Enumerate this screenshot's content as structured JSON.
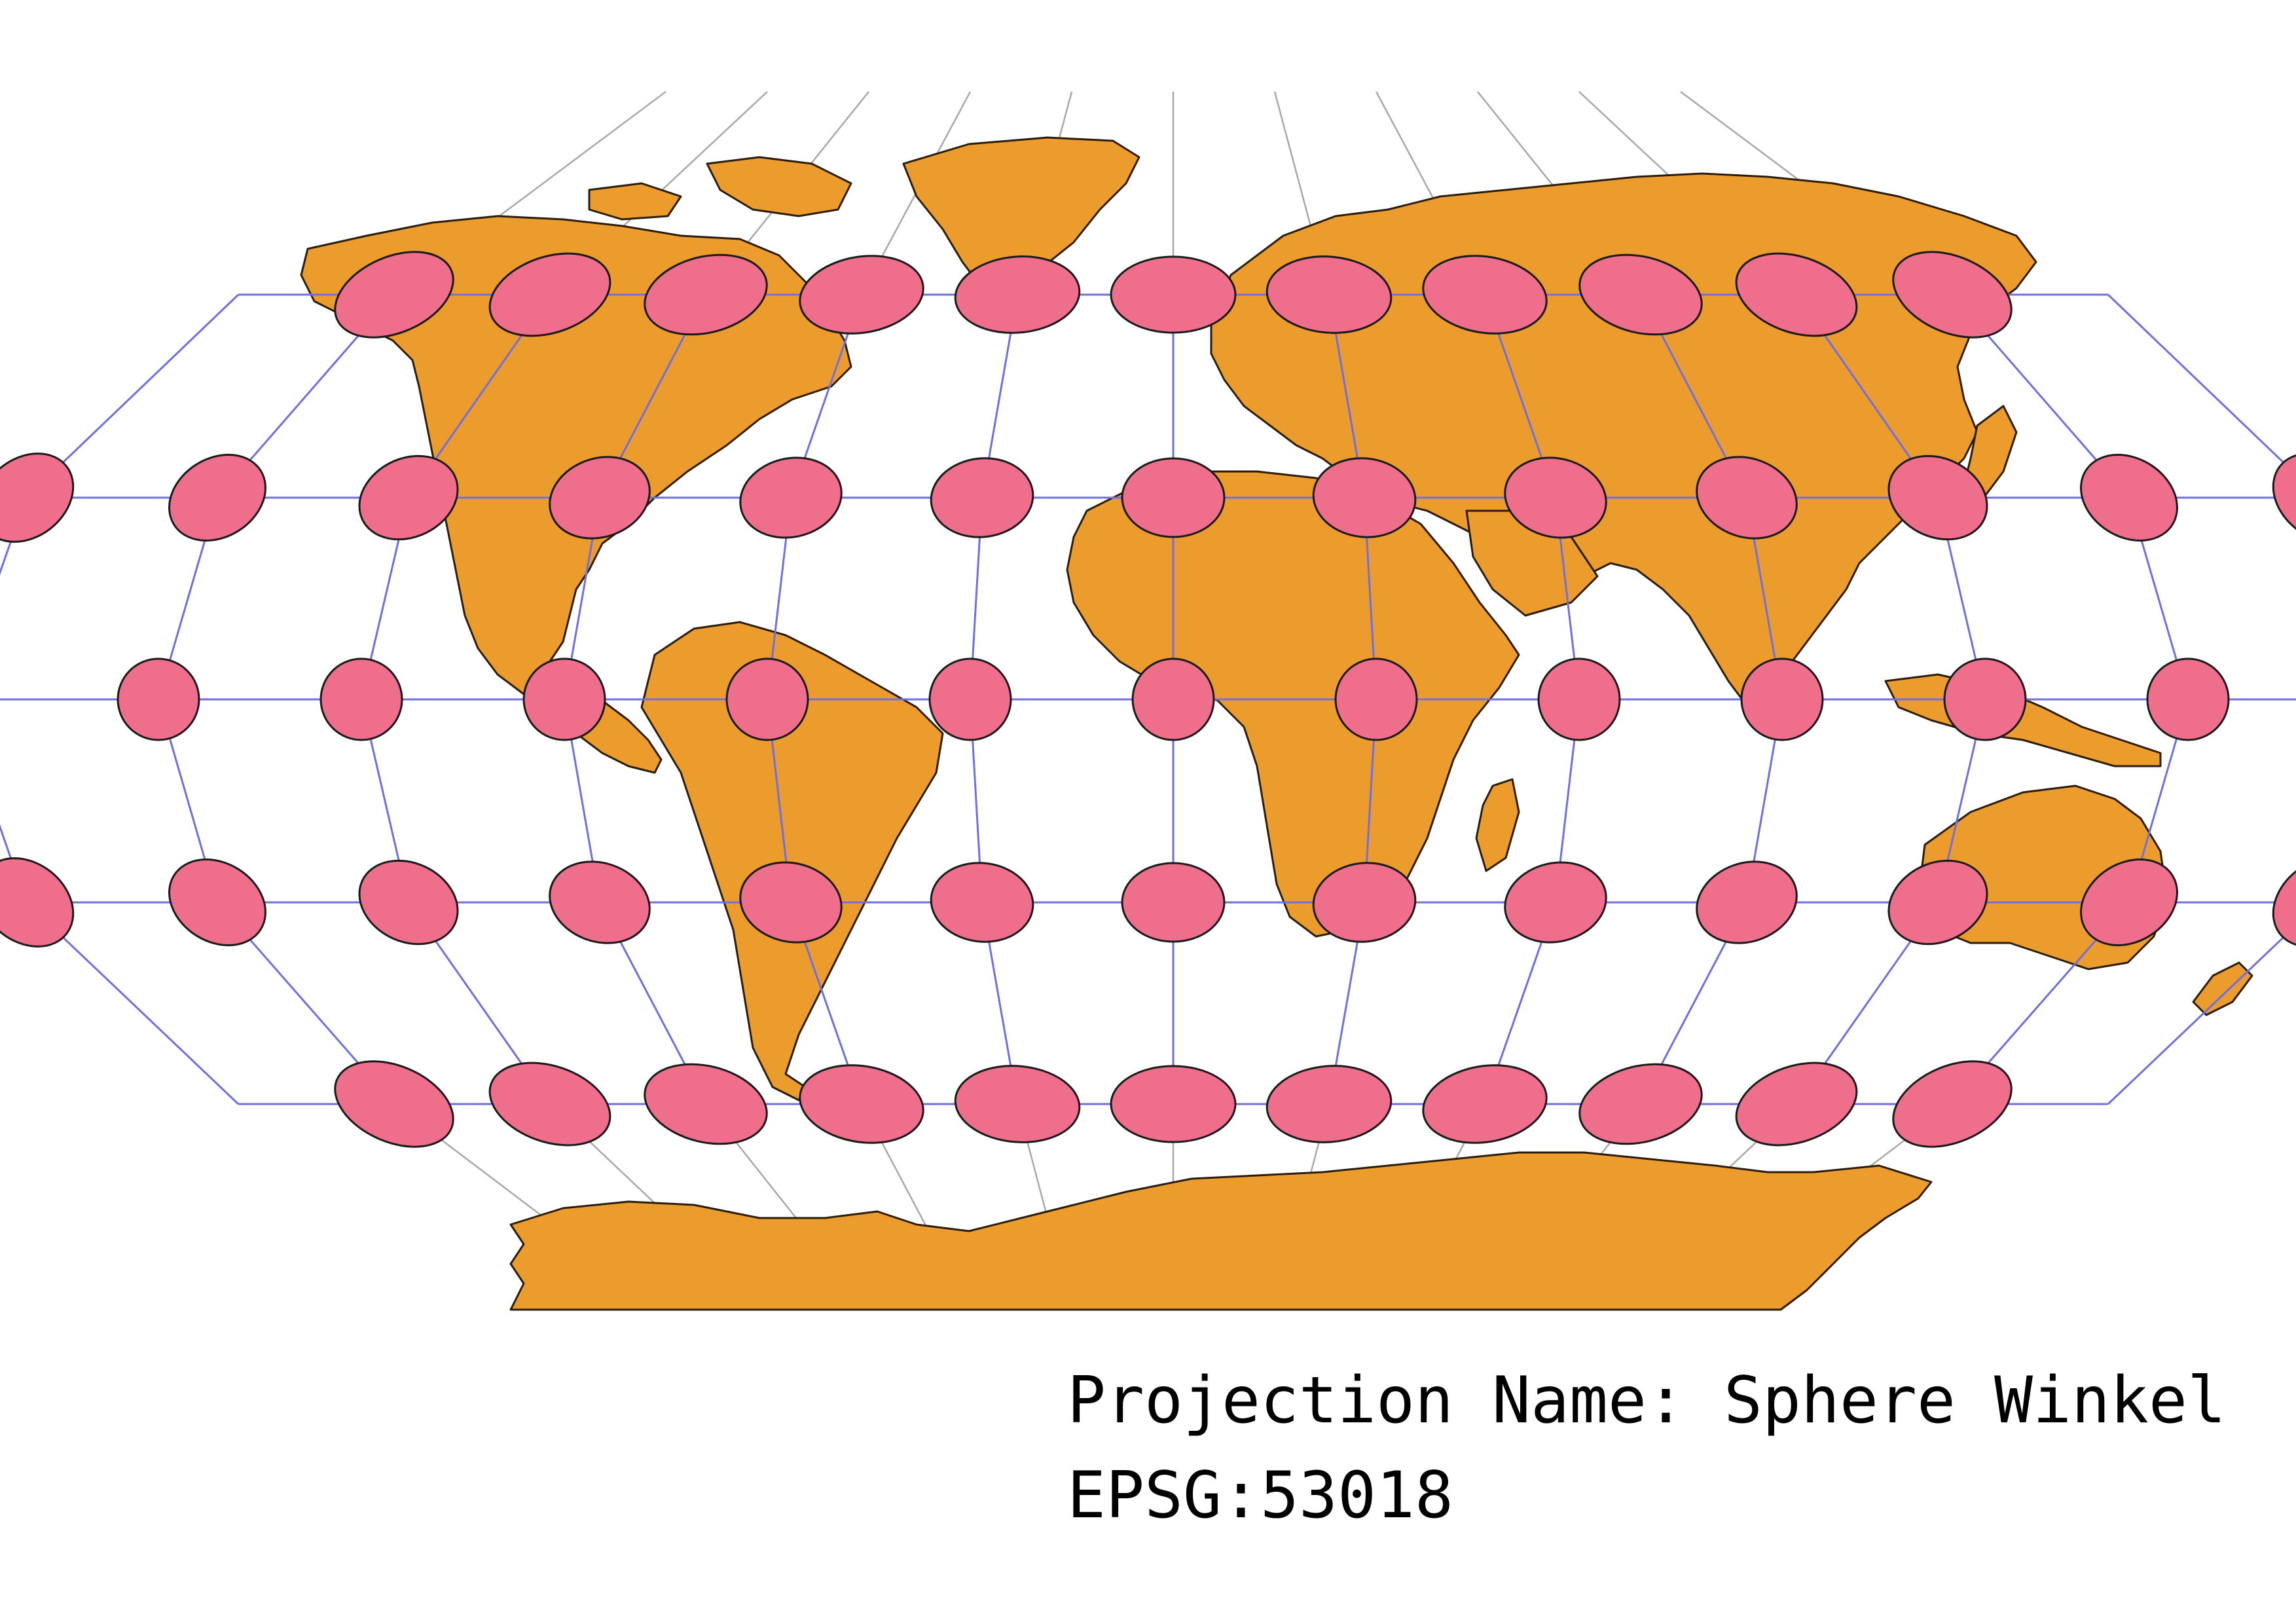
{
  "projection": {
    "name_label": "Projection Name: Sphere Winkel",
    "code_label": "EPSG:53018"
  },
  "colors": {
    "land": "#ec9c2d",
    "tissot": "#ef6e8c",
    "graticule": "#6f6fe0",
    "graticule_outer": "#a8a8a8"
  },
  "tissot_grid": {
    "latitudes": [
      60,
      30,
      0,
      -30,
      -60
    ],
    "longitudes": [
      -150,
      -120,
      -90,
      -60,
      -30,
      0,
      30,
      60,
      90,
      120,
      150,
      180
    ]
  },
  "map_layers": [
    "graticule-outer",
    "land",
    "graticule",
    "tissot-indicatrices"
  ]
}
